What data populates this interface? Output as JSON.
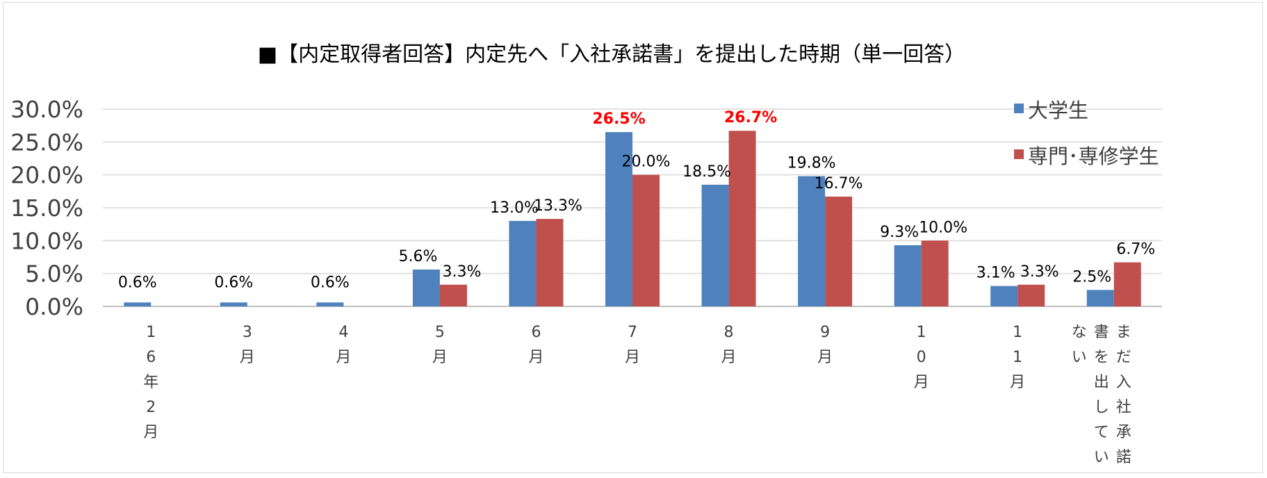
{
  "chart_data": {
    "type": "bar",
    "title": "■【内定取得者回答】内定先へ「入社承諾書」を提出した時期（単一回答）",
    "categories": [
      "16年2月",
      "3月",
      "4月",
      "5月",
      "6月",
      "7月",
      "8月",
      "9月",
      "10月",
      "11月",
      "まだ入社承諾書を出していない"
    ],
    "series": [
      {
        "name": "大学生",
        "color": "#4f81bd",
        "values": [
          0.6,
          0.6,
          0.6,
          5.6,
          13.0,
          26.5,
          18.5,
          19.8,
          9.3,
          3.1,
          2.5
        ],
        "labels": [
          "0.6%",
          "0.6%",
          "0.6%",
          "5.6%",
          "13.0%",
          "26.5%",
          "18.5%",
          "19.8%",
          "9.3%",
          "3.1%",
          "2.5%"
        ]
      },
      {
        "name": "専門･専修学生",
        "color": "#c0504d",
        "values": [
          0,
          0,
          0,
          3.3,
          13.3,
          20.0,
          26.7,
          16.7,
          10.0,
          3.3,
          6.7
        ],
        "labels": [
          "",
          "",
          "",
          "3.3%",
          "13.3%",
          "20.0%",
          "26.7%",
          "16.7%",
          "10.0%",
          "3.3%",
          "6.7%"
        ]
      }
    ],
    "highlight_labels": [
      "26.5%",
      "26.7%"
    ],
    "highlight_color": "#ff0000",
    "y_ticks": [
      "0.0%",
      "5.0%",
      "10.0%",
      "15.0%",
      "20.0%",
      "25.0%",
      "30.0%"
    ],
    "ylim": [
      0,
      30
    ],
    "grid": true,
    "legend_position": "top-right",
    "xlabel": "",
    "ylabel": ""
  }
}
